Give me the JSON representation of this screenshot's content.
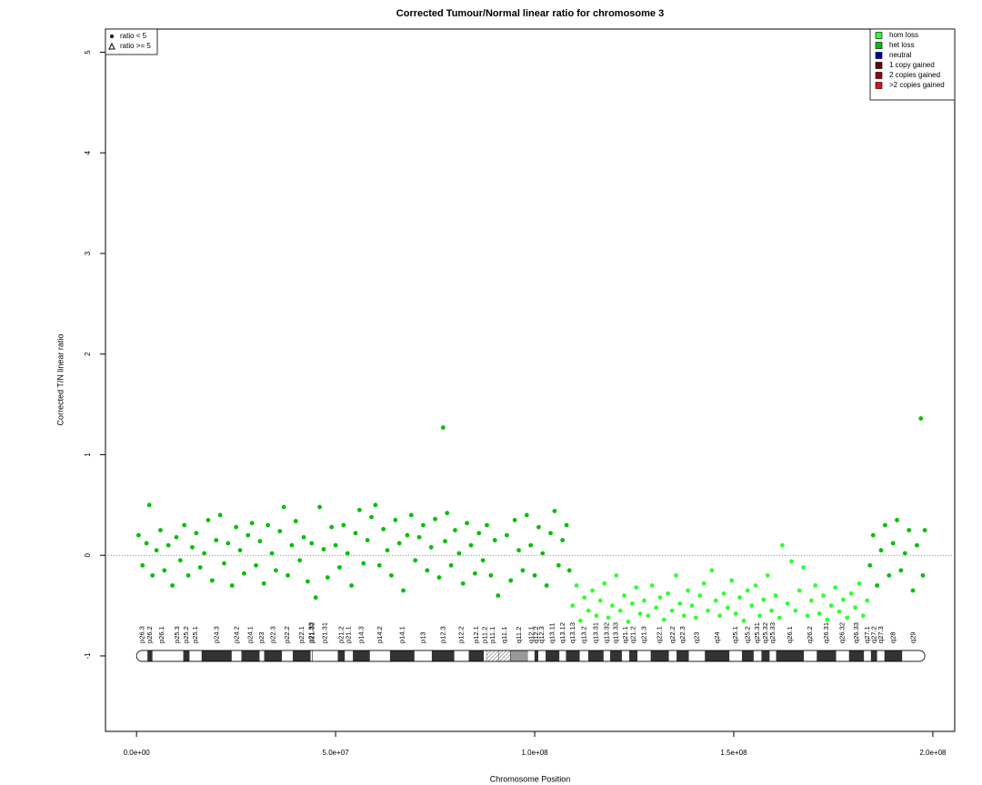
{
  "chart_data": {
    "type": "scatter",
    "title": "Corrected Tumour/Normal linear ratio for chromosome  3",
    "xlabel": "Chromosome Position",
    "ylabel": "Corrected T/N linear ratio",
    "xlim": [
      -7800000.0,
      205500000.0
    ],
    "ylim": [
      -1.75,
      5.23
    ],
    "xticks": [
      {
        "value": 0,
        "label": "0.0e+00"
      },
      {
        "value": 50000000.0,
        "label": "5.0e+07"
      },
      {
        "value": 100000000.0,
        "label": "1.0e+08"
      },
      {
        "value": 150000000.0,
        "label": "1.5e+08"
      },
      {
        "value": 200000000.0,
        "label": "2.0e+08"
      }
    ],
    "yticks": [
      -1,
      0,
      1,
      2,
      3,
      4,
      5
    ],
    "reference_line": 0,
    "marker_legend": [
      {
        "label": "ratio < 5",
        "marker": "circle"
      },
      {
        "label": "ratio >= 5",
        "marker": "triangle"
      }
    ],
    "legend_position": "upper right",
    "series": [
      {
        "name": "hom loss",
        "color": "#33ff33",
        "x": [
          109500000.0,
          110500000.0,
          111500000.0,
          112500000.0,
          113500000.0,
          114500000.0,
          115500000.0,
          116500000.0,
          117500000.0,
          118500000.0,
          119500000.0,
          120500000.0,
          121500000.0,
          122500000.0,
          123500000.0,
          124500000.0,
          125500000.0,
          126500000.0,
          127500000.0,
          128500000.0,
          129500000.0,
          130500000.0,
          131500000.0,
          132500000.0,
          133500000.0,
          134500000.0,
          135500000.0,
          136500000.0,
          137500000.0,
          138500000.0,
          139500000.0,
          140500000.0,
          141500000.0,
          142500000.0,
          143500000.0,
          144500000.0,
          145500000.0,
          146500000.0,
          147500000.0,
          148500000.0,
          149500000.0,
          150500000.0,
          151500000.0,
          152500000.0,
          153500000.0,
          154500000.0,
          155500000.0,
          156500000.0,
          157500000.0,
          158500000.0,
          159500000.0,
          160500000.0,
          161500000.0,
          162200000.0,
          163500000.0,
          164500000.0,
          165500000.0,
          166500000.0,
          167500000.0,
          168500000.0,
          169500000.0,
          170500000.0,
          171500000.0,
          172500000.0,
          173500000.0,
          174500000.0,
          175500000.0,
          176500000.0,
          177500000.0,
          178500000.0,
          179500000.0,
          180500000.0,
          181500000.0,
          182500000.0,
          183500000.0
        ],
        "values": [
          -0.5,
          -0.3,
          -0.65,
          -0.42,
          -0.55,
          -0.35,
          -0.6,
          -0.45,
          -0.28,
          -0.62,
          -0.5,
          -0.2,
          -0.55,
          -0.4,
          -0.66,
          -0.48,
          -0.32,
          -0.58,
          -0.45,
          -0.6,
          -0.3,
          -0.52,
          -0.42,
          -0.64,
          -0.38,
          -0.55,
          -0.2,
          -0.48,
          -0.6,
          -0.35,
          -0.5,
          -0.62,
          -0.4,
          -0.28,
          -0.55,
          -0.15,
          -0.45,
          -0.6,
          -0.38,
          -0.52,
          -0.25,
          -0.58,
          -0.42,
          -0.65,
          -0.35,
          -0.5,
          -0.3,
          -0.6,
          -0.44,
          -0.2,
          -0.55,
          -0.4,
          -0.62,
          0.1,
          -0.48,
          -0.06,
          -0.55,
          -0.35,
          -0.12,
          -0.6,
          -0.45,
          -0.3,
          -0.58,
          -0.4,
          -0.64,
          -0.5,
          -0.32,
          -0.56,
          -0.44,
          -0.62,
          -0.38,
          -0.52,
          -0.28,
          -0.6,
          -0.45
        ]
      },
      {
        "name": "het loss",
        "color": "#00c000",
        "x": [
          500000.0,
          1500000.0,
          2500000.0,
          3200000.0,
          4000000.0,
          5000000.0,
          6000000.0,
          7000000.0,
          8000000.0,
          9000000.0,
          10000000.0,
          11000000.0,
          12000000.0,
          13000000.0,
          14000000.0,
          15000000.0,
          16000000.0,
          17000000.0,
          18000000.0,
          19000000.0,
          20000000.0,
          21000000.0,
          22000000.0,
          23000000.0,
          24000000.0,
          25000000.0,
          26000000.0,
          27000000.0,
          28000000.0,
          29000000.0,
          30000000.0,
          31000000.0,
          32000000.0,
          33000000.0,
          34000000.0,
          35000000.0,
          36000000.0,
          37000000.0,
          38000000.0,
          39000000.0,
          40000000.0,
          41000000.0,
          42000000.0,
          43000000.0,
          44000000.0,
          45000000.0,
          46000000.0,
          47000000.0,
          48000000.0,
          49000000.0,
          50000000.0,
          51000000.0,
          52000000.0,
          53000000.0,
          54000000.0,
          55000000.0,
          56000000.0,
          57000000.0,
          58000000.0,
          59000000.0,
          60000000.0,
          61000000.0,
          62000000.0,
          63000000.0,
          64000000.0,
          65000000.0,
          66000000.0,
          67000000.0,
          68000000.0,
          69000000.0,
          70000000.0,
          71000000.0,
          72000000.0,
          73000000.0,
          74000000.0,
          75000000.0,
          76000000.0,
          77000000.0,
          77500000.0,
          78000000.0,
          79000000.0,
          80000000.0,
          81000000.0,
          82000000.0,
          83000000.0,
          84000000.0,
          85000000.0,
          86000000.0,
          87000000.0,
          88000000.0,
          89000000.0,
          90000000.0,
          90800000.0,
          93000000.0,
          94000000.0,
          95000000.0,
          96000000.0,
          97000000.0,
          98000000.0,
          99000000.0,
          100000000.0,
          101000000.0,
          102000000.0,
          103000000.0,
          104000000.0,
          105000000.0,
          106000000.0,
          107000000.0,
          108000000.0,
          108700000.0,
          184200000.0,
          185000000.0,
          186000000.0,
          187000000.0,
          188000000.0,
          189000000.0,
          190000000.0,
          191000000.0,
          192000000.0,
          193000000.0,
          194000000.0,
          195000000.0,
          196000000.0,
          197000000.0,
          197500000.0,
          198000000.0
        ],
        "values": [
          0.2,
          -0.1,
          0.12,
          0.5,
          -0.2,
          0.05,
          0.25,
          -0.15,
          0.1,
          -0.3,
          0.18,
          -0.05,
          0.3,
          -0.2,
          0.08,
          0.22,
          -0.12,
          0.02,
          0.35,
          -0.25,
          0.15,
          0.4,
          -0.08,
          0.12,
          -0.3,
          0.28,
          0.05,
          -0.18,
          0.2,
          0.32,
          -0.1,
          0.14,
          -0.28,
          0.3,
          0.02,
          -0.15,
          0.24,
          0.48,
          -0.2,
          0.1,
          0.34,
          -0.05,
          0.18,
          -0.26,
          0.12,
          -0.42,
          0.48,
          0.06,
          -0.22,
          0.28,
          0.1,
          -0.12,
          0.3,
          0.02,
          -0.3,
          0.22,
          0.45,
          -0.08,
          0.15,
          0.38,
          0.5,
          -0.1,
          0.26,
          0.05,
          -0.2,
          0.35,
          0.12,
          -0.35,
          0.2,
          0.4,
          -0.05,
          0.18,
          0.3,
          -0.15,
          0.08,
          0.36,
          -0.22,
          1.27,
          0.14,
          0.42,
          -0.1,
          0.25,
          0.02,
          -0.28,
          0.32,
          0.1,
          -0.18,
          0.22,
          -0.05,
          0.3,
          -0.2,
          0.15,
          -0.4,
          0.2,
          -0.25,
          0.35,
          0.05,
          -0.15,
          0.4,
          0.1,
          -0.2,
          0.28,
          0.02,
          -0.3,
          0.22,
          0.44,
          -0.1,
          0.15,
          0.3,
          -0.15,
          -0.1,
          0.2,
          -0.3,
          0.05,
          0.3,
          -0.2,
          0.12,
          0.35,
          -0.15,
          0.02,
          0.25,
          -0.35,
          0.1,
          1.36,
          -0.2,
          0.25
        ]
      },
      {
        "name": "neutral",
        "color": "#0000aa",
        "x": [],
        "values": []
      },
      {
        "name": "1 copy gained",
        "color": "#660000",
        "x": [],
        "values": []
      },
      {
        "name": "2 copies gained",
        "color": "#990000",
        "x": [],
        "values": []
      },
      {
        "name": ">2 copies gained",
        "color": "#dd1111",
        "x": [],
        "values": []
      }
    ],
    "ideogram": {
      "y": -1,
      "bands": [
        {
          "name": "p26.3",
          "start": 0,
          "end": 2800000.0,
          "stain": "gneg"
        },
        {
          "name": "p26.2",
          "start": 2800000.0,
          "end": 4000000.0,
          "stain": "gpos"
        },
        {
          "name": "p26.1",
          "start": 4000000.0,
          "end": 8700000.0,
          "stain": "gneg"
        },
        {
          "name": "p25.3",
          "start": 8700000.0,
          "end": 11800000.0,
          "stain": "gneg"
        },
        {
          "name": "p25.2",
          "start": 11800000.0,
          "end": 13300000.0,
          "stain": "gpos"
        },
        {
          "name": "p25.1",
          "start": 13300000.0,
          "end": 16400000.0,
          "stain": "gneg"
        },
        {
          "name": "p24.3",
          "start": 16400000.0,
          "end": 23900000.0,
          "stain": "gpos"
        },
        {
          "name": "p24.2",
          "start": 23900000.0,
          "end": 26400000.0,
          "stain": "gneg"
        },
        {
          "name": "p24.1",
          "start": 26400000.0,
          "end": 30900000.0,
          "stain": "gpos"
        },
        {
          "name": "p23",
          "start": 30900000.0,
          "end": 32100000.0,
          "stain": "gneg"
        },
        {
          "name": "p22.3",
          "start": 32100000.0,
          "end": 36500000.0,
          "stain": "gpos"
        },
        {
          "name": "p22.2",
          "start": 36500000.0,
          "end": 39300000.0,
          "stain": "gneg"
        },
        {
          "name": "p22.1",
          "start": 39300000.0,
          "end": 43700000.0,
          "stain": "gpos"
        },
        {
          "name": "p21.33",
          "start": 43700000.0,
          "end": 44100000.0,
          "stain": "gneg"
        },
        {
          "name": "p21.32",
          "start": 44100000.0,
          "end": 44200000.0,
          "stain": "gpos"
        },
        {
          "name": "p21.31",
          "start": 44200000.0,
          "end": 50600000.0,
          "stain": "gneg"
        },
        {
          "name": "p21.2",
          "start": 50600000.0,
          "end": 52300000.0,
          "stain": "gpos"
        },
        {
          "name": "p21.1",
          "start": 52300000.0,
          "end": 54400000.0,
          "stain": "gneg"
        },
        {
          "name": "p14.3",
          "start": 54400000.0,
          "end": 58600000.0,
          "stain": "gpos"
        },
        {
          "name": "p14.2",
          "start": 58600000.0,
          "end": 63700000.0,
          "stain": "gneg"
        },
        {
          "name": "p14.1",
          "start": 63700000.0,
          "end": 69800000.0,
          "stain": "gpos"
        },
        {
          "name": "p13",
          "start": 69800000.0,
          "end": 74200000.0,
          "stain": "gneg"
        },
        {
          "name": "p12.3",
          "start": 74200000.0,
          "end": 79800000.0,
          "stain": "gpos"
        },
        {
          "name": "p12.2",
          "start": 79800000.0,
          "end": 83500000.0,
          "stain": "gneg"
        },
        {
          "name": "p12.1",
          "start": 83500000.0,
          "end": 87200000.0,
          "stain": "gpos"
        },
        {
          "name": "p11.2",
          "start": 87200000.0,
          "end": 87900000.0,
          "stain": "gneg"
        },
        {
          "name": "p11.1",
          "start": 87900000.0,
          "end": 91000000.0,
          "stain": "acen"
        },
        {
          "name": "q11.1",
          "start": 91000000.0,
          "end": 93900000.0,
          "stain": "acen"
        },
        {
          "name": "q11.2",
          "start": 93900000.0,
          "end": 98300000.0,
          "stain": "gvar"
        },
        {
          "name": "q12.1",
          "start": 98300000.0,
          "end": 100000000.0,
          "stain": "gneg"
        },
        {
          "name": "q12.2",
          "start": 100000000.0,
          "end": 100900000.0,
          "stain": "gpos"
        },
        {
          "name": "q12.3",
          "start": 100900000.0,
          "end": 102800000.0,
          "stain": "gneg"
        },
        {
          "name": "q13.11",
          "start": 102800000.0,
          "end": 106200000.0,
          "stain": "gpos"
        },
        {
          "name": "q13.12",
          "start": 106200000.0,
          "end": 107900000.0,
          "stain": "gneg"
        },
        {
          "name": "q13.13",
          "start": 107900000.0,
          "end": 111300000.0,
          "stain": "gpos"
        },
        {
          "name": "q13.2",
          "start": 111300000.0,
          "end": 113500000.0,
          "stain": "gneg"
        },
        {
          "name": "q13.31",
          "start": 113500000.0,
          "end": 117300000.0,
          "stain": "gpos"
        },
        {
          "name": "q13.32",
          "start": 117300000.0,
          "end": 119000000.0,
          "stain": "gneg"
        },
        {
          "name": "q13.33",
          "start": 119000000.0,
          "end": 121900000.0,
          "stain": "gpos"
        },
        {
          "name": "q21.1",
          "start": 121900000.0,
          "end": 123800000.0,
          "stain": "gneg"
        },
        {
          "name": "q21.2",
          "start": 123800000.0,
          "end": 125800000.0,
          "stain": "gpos"
        },
        {
          "name": "q21.3",
          "start": 125800000.0,
          "end": 129200000.0,
          "stain": "gneg"
        },
        {
          "name": "q22.1",
          "start": 129200000.0,
          "end": 133700000.0,
          "stain": "gpos"
        },
        {
          "name": "q22.2",
          "start": 133700000.0,
          "end": 135700000.0,
          "stain": "gneg"
        },
        {
          "name": "q22.3",
          "start": 135700000.0,
          "end": 138700000.0,
          "stain": "gpos"
        },
        {
          "name": "q23",
          "start": 138700000.0,
          "end": 142800000.0,
          "stain": "gneg"
        },
        {
          "name": "q24",
          "start": 142800000.0,
          "end": 148900000.0,
          "stain": "gpos"
        },
        {
          "name": "q25.1",
          "start": 148900000.0,
          "end": 152100000.0,
          "stain": "gneg"
        },
        {
          "name": "q25.2",
          "start": 152100000.0,
          "end": 155000000.0,
          "stain": "gpos"
        },
        {
          "name": "q25.31",
          "start": 155000000.0,
          "end": 157000000.0,
          "stain": "gneg"
        },
        {
          "name": "q25.32",
          "start": 157000000.0,
          "end": 159000000.0,
          "stain": "gpos"
        },
        {
          "name": "q25.33",
          "start": 159000000.0,
          "end": 160700000.0,
          "stain": "gneg"
        },
        {
          "name": "q26.1",
          "start": 160700000.0,
          "end": 167600000.0,
          "stain": "gpos"
        },
        {
          "name": "q26.2",
          "start": 167600000.0,
          "end": 170900000.0,
          "stain": "gneg"
        },
        {
          "name": "q26.31",
          "start": 170900000.0,
          "end": 175700000.0,
          "stain": "gpos"
        },
        {
          "name": "q26.32",
          "start": 175700000.0,
          "end": 179000000.0,
          "stain": "gneg"
        },
        {
          "name": "q26.33",
          "start": 179000000.0,
          "end": 182700000.0,
          "stain": "gpos"
        },
        {
          "name": "q27.1",
          "start": 182700000.0,
          "end": 184500000.0,
          "stain": "gneg"
        },
        {
          "name": "q27.2",
          "start": 184500000.0,
          "end": 186000000.0,
          "stain": "gpos"
        },
        {
          "name": "q27.3",
          "start": 186000000.0,
          "end": 187900000.0,
          "stain": "gneg"
        },
        {
          "name": "q28",
          "start": 187900000.0,
          "end": 192300000.0,
          "stain": "gpos"
        },
        {
          "name": "q29",
          "start": 192300000.0,
          "end": 198000000.0,
          "stain": "gneg"
        }
      ]
    }
  }
}
